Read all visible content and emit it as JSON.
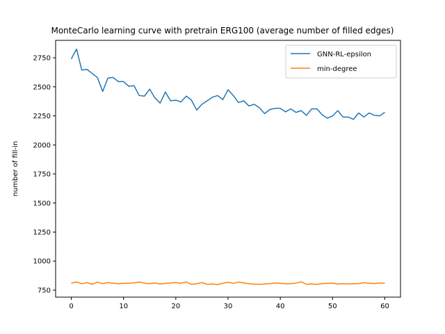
{
  "chart_data": {
    "type": "line",
    "title": "MonteCarlo learning curve with pretrain ERG100 (average number of filled edges)",
    "xlabel": "",
    "ylabel": "number of fill-in",
    "xlim": [
      -3,
      63
    ],
    "ylim": [
      690,
      2900
    ],
    "xticks": [
      0,
      10,
      20,
      30,
      40,
      50,
      60
    ],
    "yticks": [
      750,
      1000,
      1250,
      1500,
      1750,
      2000,
      2250,
      2500,
      2750
    ],
    "grid": false,
    "legend_position": "top-right",
    "colors": {
      "gnn": "#1f77b4",
      "min": "#ff7f0e"
    },
    "series": [
      {
        "name": "GNN-RL-epsilon",
        "x": [
          0,
          1,
          2,
          3,
          4,
          5,
          6,
          7,
          8,
          9,
          10,
          11,
          12,
          13,
          14,
          15,
          16,
          17,
          18,
          19,
          20,
          21,
          22,
          23,
          24,
          25,
          26,
          27,
          28,
          29,
          30,
          31,
          32,
          33,
          34,
          35,
          36,
          37,
          38,
          39,
          40,
          41,
          42,
          43,
          44,
          45,
          46,
          47,
          48,
          49,
          50,
          51,
          52,
          53,
          54,
          55,
          56,
          57,
          58,
          59,
          60
        ],
        "values": [
          2740,
          2825,
          2645,
          2650,
          2615,
          2580,
          2460,
          2575,
          2580,
          2545,
          2545,
          2505,
          2510,
          2425,
          2420,
          2480,
          2405,
          2360,
          2455,
          2380,
          2385,
          2370,
          2420,
          2385,
          2300,
          2350,
          2380,
          2410,
          2425,
          2390,
          2475,
          2425,
          2365,
          2380,
          2335,
          2350,
          2320,
          2270,
          2305,
          2315,
          2315,
          2285,
          2310,
          2280,
          2295,
          2255,
          2310,
          2310,
          2260,
          2230,
          2250,
          2295,
          2240,
          2240,
          2220,
          2275,
          2240,
          2275,
          2255,
          2250,
          2280
        ]
      },
      {
        "name": "min-degree",
        "x": [
          0,
          1,
          2,
          3,
          4,
          5,
          6,
          7,
          8,
          9,
          10,
          11,
          12,
          13,
          14,
          15,
          16,
          17,
          18,
          19,
          20,
          21,
          22,
          23,
          24,
          25,
          26,
          27,
          28,
          29,
          30,
          31,
          32,
          33,
          34,
          35,
          36,
          37,
          38,
          39,
          40,
          41,
          42,
          43,
          44,
          45,
          46,
          47,
          48,
          49,
          50,
          51,
          52,
          53,
          54,
          55,
          56,
          57,
          58,
          59,
          60
        ],
        "values": [
          810,
          820,
          805,
          815,
          800,
          820,
          805,
          815,
          810,
          805,
          808,
          810,
          812,
          820,
          810,
          805,
          812,
          802,
          808,
          812,
          815,
          810,
          820,
          800,
          805,
          815,
          800,
          803,
          798,
          810,
          818,
          808,
          820,
          812,
          805,
          802,
          800,
          803,
          806,
          812,
          808,
          805,
          806,
          810,
          822,
          800,
          804,
          800,
          806,
          808,
          810,
          802,
          806,
          804,
          805,
          806,
          814,
          810,
          806,
          812,
          810
        ]
      }
    ]
  }
}
